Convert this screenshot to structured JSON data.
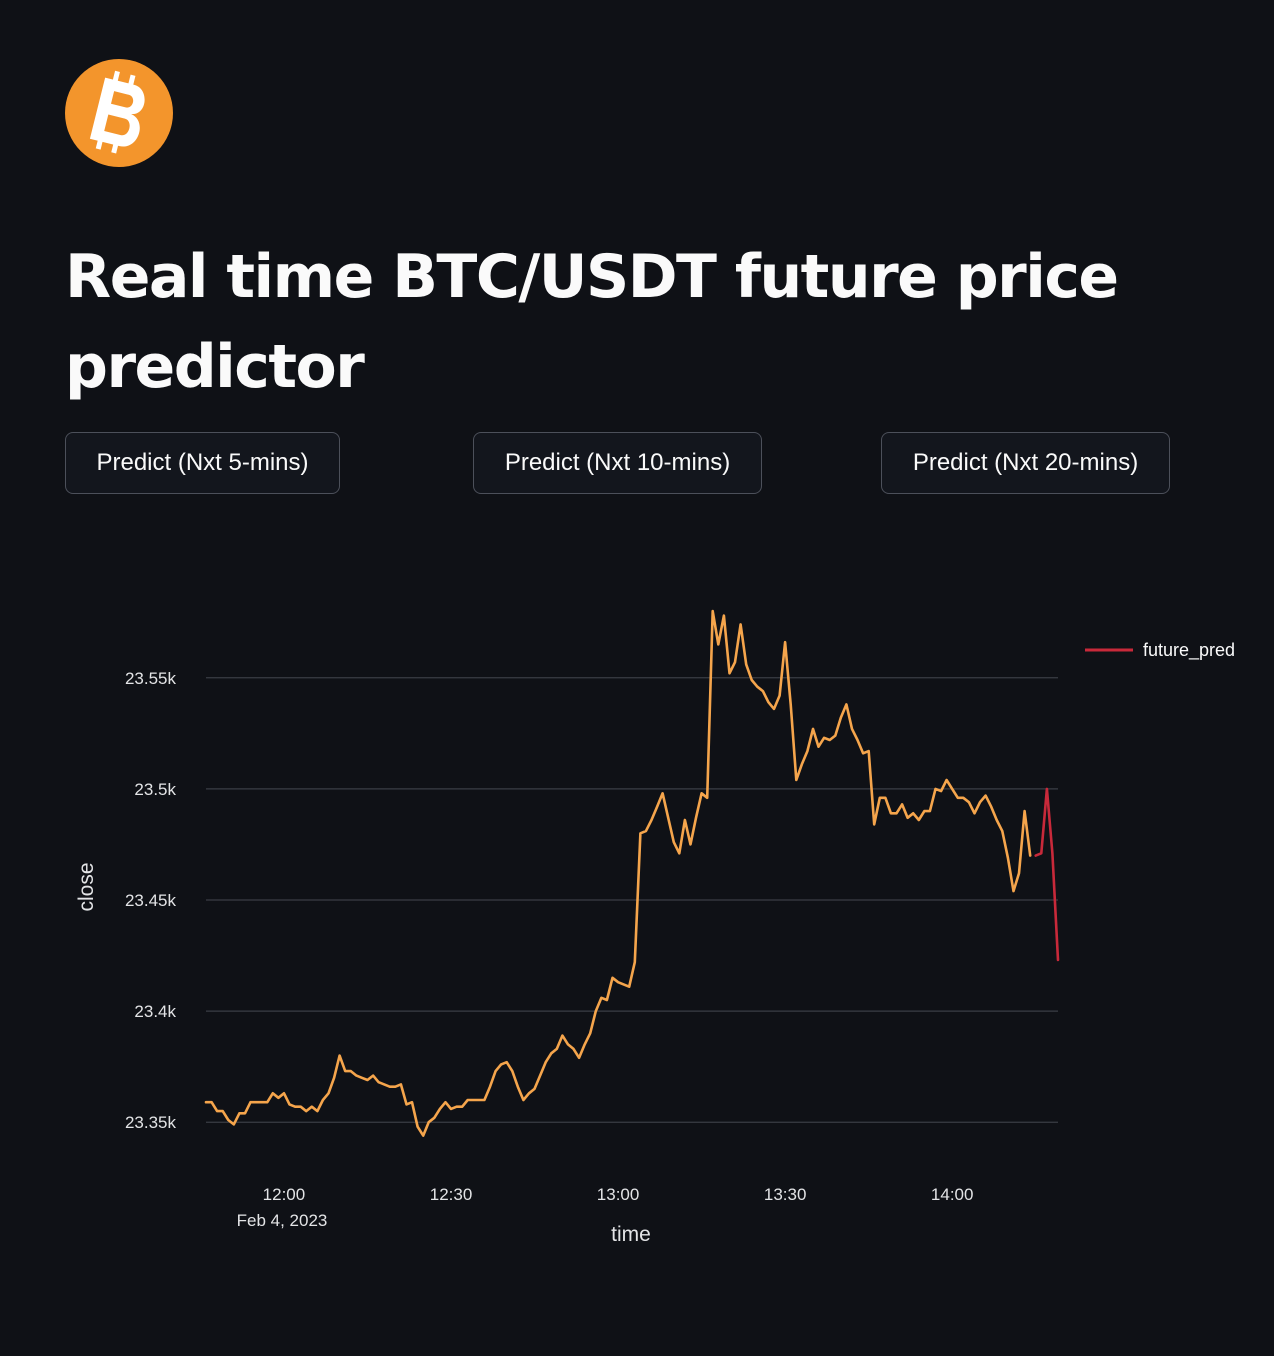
{
  "header": {
    "logo_icon": "bitcoin-icon",
    "logo_color": "#f3952c",
    "title": "Real time BTC/USDT future price predictor"
  },
  "buttons": [
    {
      "label": "Predict (Nxt 5-mins)"
    },
    {
      "label": "Predict (Nxt 10-mins)"
    },
    {
      "label": "Predict (Nxt 20-mins)"
    }
  ],
  "chart_data": {
    "type": "line",
    "xlabel": "time",
    "ylabel": "close",
    "x_date_label": "Feb 4, 2023",
    "x_start": "11:46",
    "x_end": "14:19",
    "x_ticks": [
      "12:00",
      "12:30",
      "13:00",
      "13:30",
      "14:00"
    ],
    "y_ticks": [
      "23.35k",
      "23.4k",
      "23.45k",
      "23.5k",
      "23.55k"
    ],
    "y_tick_values": [
      23350,
      23400,
      23450,
      23500,
      23550
    ],
    "ylim": [
      23333,
      23585
    ],
    "grid": "horizontal",
    "legend_position": "top-right",
    "series": [
      {
        "name": "",
        "color": "#f5a54c",
        "start": "11:46",
        "step_minutes": 1,
        "values": [
          23359,
          23359,
          23355,
          23355,
          23351,
          23349,
          23354,
          23354,
          23359,
          23359,
          23359,
          23359,
          23363,
          23361,
          23363,
          23358,
          23357,
          23357,
          23355,
          23357,
          23355,
          23360,
          23363,
          23370,
          23380,
          23373,
          23373,
          23371,
          23370,
          23369,
          23371,
          23368,
          23367,
          23366,
          23366,
          23367,
          23358,
          23359,
          23348,
          23344,
          23350,
          23352,
          23356,
          23359,
          23356,
          23357,
          23357,
          23360,
          23360,
          23360,
          23360,
          23366,
          23373,
          23376,
          23377,
          23373,
          23366,
          23360,
          23363,
          23365,
          23371,
          23377,
          23381,
          23383,
          23389,
          23385,
          23383,
          23379,
          23385,
          23390,
          23400,
          23406,
          23405,
          23415,
          23413,
          23412,
          23411,
          23422,
          23480,
          23481,
          23486,
          23492,
          23498,
          23487,
          23476,
          23471,
          23486,
          23475,
          23487,
          23498,
          23496,
          23580,
          23565,
          23578,
          23552,
          23557,
          23574,
          23556,
          23549,
          23546,
          23544,
          23539,
          23536,
          23542,
          23566,
          23538,
          23504,
          23511,
          23517,
          23527,
          23519,
          23523,
          23522,
          23524,
          23532,
          23538,
          23527,
          23522,
          23516,
          23517,
          23484,
          23496,
          23496,
          23489,
          23489,
          23493,
          23487,
          23489,
          23486,
          23490,
          23490,
          23500,
          23499,
          23504,
          23500,
          23496,
          23496,
          23494,
          23489,
          23494,
          23497,
          23492,
          23486,
          23481,
          23469,
          23454,
          23462,
          23490,
          23470
        ]
      },
      {
        "name": "future_pred",
        "color": "#c8293a",
        "start": "14:15",
        "step_minutes": 1,
        "values": [
          23470,
          23471,
          23500,
          23471,
          23423
        ]
      }
    ]
  }
}
